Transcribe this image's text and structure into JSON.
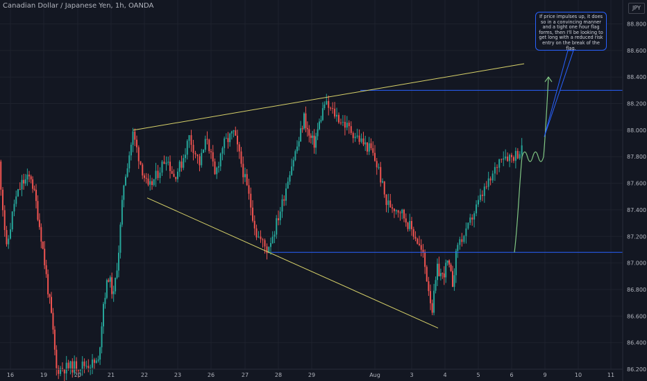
{
  "header": {
    "title": "Canadian Dollar / Japanese Yen, 1h, OANDA"
  },
  "price_axis": {
    "currency": "JPY"
  },
  "annotation": {
    "text": "If price impulses up, it does so in a convincing manner and a tight one hour flag forms, then I'll be looking to get long with a reduced risk entry on the break of the flag."
  },
  "colors": {
    "background": "#131722",
    "grid": "#1e222d",
    "bull": "#26a69a",
    "bear": "#ef5350",
    "trendline": "#d9d36a",
    "level": "#2962ff",
    "projection": "#81c784",
    "text": "#b2b5be"
  },
  "chart_data": {
    "type": "candlestick",
    "title": "Canadian Dollar / Japanese Yen, 1h, OANDA",
    "ylabel": "JPY",
    "ylim": [
      86.2,
      88.98
    ],
    "y_ticks": [
      "86.200",
      "86.400",
      "86.600",
      "86.800",
      "87.000",
      "87.200",
      "87.400",
      "87.600",
      "87.800",
      "88.000",
      "88.200",
      "88.400",
      "88.600",
      "88.800"
    ],
    "x_ticks": [
      "16",
      "19",
      "20",
      "21",
      "22",
      "23",
      "26",
      "27",
      "28",
      "29",
      "Aug",
      "3",
      "4",
      "5",
      "6",
      "9",
      "10",
      "11"
    ],
    "horizontal_levels": [
      88.3,
      87.08
    ],
    "trendlines": [
      {
        "name": "upper",
        "from": [
          "22",
          88.0
        ],
        "to": [
          "9",
          88.5
        ]
      },
      {
        "name": "lower",
        "from": [
          "22",
          87.49
        ],
        "to": [
          "4",
          86.51
        ]
      }
    ],
    "price_path": [
      [
        "16",
        87.75
      ],
      [
        "16",
        87.1
      ],
      [
        "16",
        87.45
      ],
      [
        "16",
        87.6
      ],
      [
        "19",
        87.65
      ],
      [
        "19",
        87.45
      ],
      [
        "19",
        87.2
      ],
      [
        "19",
        86.9
      ],
      [
        "19",
        86.6
      ],
      [
        "19",
        86.2
      ],
      [
        "21",
        86.25
      ],
      [
        "21",
        86.7
      ],
      [
        "21",
        86.9
      ],
      [
        "21",
        86.75
      ],
      [
        "21",
        87.1
      ],
      [
        "21",
        87.6
      ],
      [
        "22",
        87.97
      ],
      [
        "22",
        87.75
      ],
      [
        "22",
        87.55
      ],
      [
        "22",
        87.65
      ],
      [
        "23",
        87.8
      ],
      [
        "23",
        87.65
      ],
      [
        "23",
        87.75
      ],
      [
        "23",
        87.95
      ],
      [
        "26",
        87.75
      ],
      [
        "26",
        87.95
      ],
      [
        "26",
        87.65
      ],
      [
        "26",
        87.88
      ],
      [
        "27",
        87.98
      ],
      [
        "27",
        87.75
      ],
      [
        "27",
        87.5
      ],
      [
        "27",
        87.22
      ],
      [
        "28",
        87.1
      ],
      [
        "28",
        87.25
      ],
      [
        "28",
        87.45
      ],
      [
        "28",
        87.7
      ],
      [
        "29",
        87.92
      ],
      [
        "29",
        88.1
      ],
      [
        "29",
        87.95
      ],
      [
        "29",
        87.9
      ],
      [
        "29",
        88.05
      ],
      [
        "29",
        88.2
      ],
      [
        "Aug",
        87.9
      ],
      [
        "Aug",
        87.85
      ],
      [
        "Aug",
        87.7
      ],
      [
        "Aug",
        87.45
      ],
      [
        "3",
        87.4
      ],
      [
        "3",
        87.3
      ],
      [
        "3",
        87.2
      ],
      [
        "3",
        87.05
      ],
      [
        "4",
        86.65
      ],
      [
        "4",
        86.95
      ],
      [
        "4",
        86.9
      ],
      [
        "4",
        87.0
      ],
      [
        "4",
        86.85
      ],
      [
        "4",
        87.15
      ],
      [
        "5",
        87.22
      ],
      [
        "5",
        87.35
      ],
      [
        "5",
        87.45
      ],
      [
        "5",
        87.55
      ],
      [
        "5",
        87.62
      ],
      [
        "6",
        87.82
      ],
      [
        "6",
        87.8
      ],
      [
        "6",
        87.85
      ]
    ],
    "projection": [
      [
        "6",
        87.08
      ],
      [
        "6",
        87.8
      ],
      [
        "9",
        87.83
      ],
      [
        "9",
        88.4
      ]
    ]
  }
}
